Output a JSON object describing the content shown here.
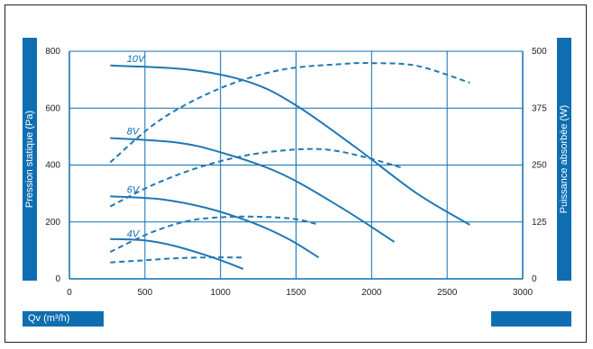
{
  "chart_data": {
    "type": "line",
    "xlabel": "Qv (m³/h)",
    "ylabel": "Pression statique (Pa)",
    "y2label": "Puissance absorbée (W)",
    "xlim": [
      0,
      3000
    ],
    "ylim": [
      0,
      800
    ],
    "y2lim": [
      0,
      500
    ],
    "x_ticks": [
      "0",
      "500",
      "1000",
      "1500",
      "2000",
      "2500",
      "3000"
    ],
    "y_ticks": [
      "0",
      "200",
      "400",
      "600",
      "800"
    ],
    "y2_ticks": [
      "0",
      "125",
      "250",
      "375",
      "500"
    ],
    "grid": true,
    "colors": {
      "line": "#1f77b4",
      "bar": "#0f6eb1",
      "grid": "#0f6eb1"
    },
    "series": [
      {
        "name": "10V",
        "style": "solid",
        "axis": "left",
        "x": [
          270,
          800,
          1200,
          1500,
          1900,
          2300,
          2650
        ],
        "y": [
          750,
          735,
          690,
          610,
          460,
          300,
          190
        ]
      },
      {
        "name": "8V",
        "style": "solid",
        "axis": "left",
        "x": [
          270,
          700,
          1000,
          1400,
          1800,
          2150
        ],
        "y": [
          495,
          480,
          445,
          370,
          250,
          130
        ]
      },
      {
        "name": "6V",
        "style": "solid",
        "axis": "left",
        "x": [
          270,
          600,
          900,
          1200,
          1450,
          1650
        ],
        "y": [
          290,
          280,
          250,
          200,
          140,
          75
        ]
      },
      {
        "name": "4V",
        "style": "solid",
        "axis": "left",
        "x": [
          270,
          500,
          700,
          950,
          1150
        ],
        "y": [
          140,
          135,
          115,
          75,
          35
        ]
      },
      {
        "style": "dashed",
        "axis": "right",
        "x": [
          270,
          600,
          1000,
          1400,
          1800,
          2000,
          2300,
          2650
        ],
        "y": [
          256,
          349,
          419,
          459,
          472,
          474,
          468,
          431
        ]
      },
      {
        "style": "dashed",
        "axis": "right",
        "x": [
          270,
          550,
          850,
          1150,
          1450,
          1700,
          1950,
          2200
        ],
        "y": [
          159,
          206,
          244,
          270,
          283,
          284,
          268,
          244
        ]
      },
      {
        "style": "dashed",
        "axis": "right",
        "x": [
          270,
          550,
          800,
          1050,
          1300,
          1500,
          1650
        ],
        "y": [
          59,
          103,
          128,
          136,
          136,
          131,
          119
        ]
      },
      {
        "style": "dashed",
        "axis": "right",
        "x": [
          270,
          500,
          700,
          900,
          1100,
          1150
        ],
        "y": [
          36,
          41,
          45,
          47,
          47,
          47
        ]
      }
    ],
    "series_labels": [
      {
        "text": "10V",
        "x": 380,
        "y": 775
      },
      {
        "text": "8V",
        "x": 380,
        "y": 520
      },
      {
        "text": "6V",
        "x": 380,
        "y": 315
      },
      {
        "text": "4V",
        "x": 380,
        "y": 160
      }
    ]
  }
}
